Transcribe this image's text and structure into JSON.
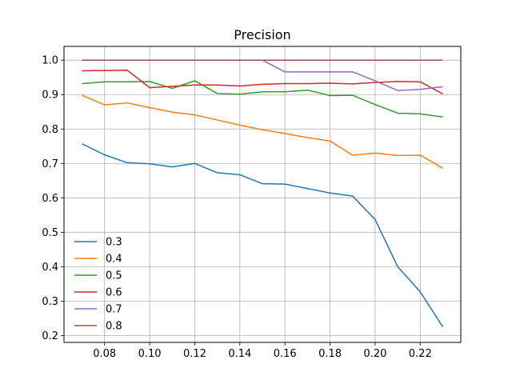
{
  "chart_data": {
    "type": "line",
    "title": "Precision",
    "xlabel": "",
    "ylabel": "",
    "xlim": [
      0.062,
      0.238
    ],
    "ylim": [
      0.18,
      1.04
    ],
    "xticks": [
      "0.08",
      "0.10",
      "0.12",
      "0.14",
      "0.16",
      "0.18",
      "0.20",
      "0.22"
    ],
    "yticks": [
      "0.2",
      "0.3",
      "0.4",
      "0.5",
      "0.6",
      "0.7",
      "0.8",
      "0.9",
      "1.0"
    ],
    "grid": true,
    "legend_position": "lower-left",
    "x": [
      0.07,
      0.08,
      0.09,
      0.1,
      0.11,
      0.12,
      0.13,
      0.14,
      0.15,
      0.16,
      0.17,
      0.18,
      0.19,
      0.2,
      0.21,
      0.22,
      0.23
    ],
    "series": [
      {
        "name": "0.3",
        "color": "#1f77b4",
        "values": [
          0.757,
          0.725,
          0.702,
          0.699,
          0.69,
          0.7,
          0.673,
          0.667,
          0.641,
          0.64,
          0.627,
          0.614,
          0.605,
          0.537,
          0.4,
          0.327,
          0.225
        ]
      },
      {
        "name": "0.4",
        "color": "#ff7f0e",
        "values": [
          0.898,
          0.87,
          0.876,
          0.862,
          0.849,
          0.841,
          0.826,
          0.811,
          0.798,
          0.787,
          0.775,
          0.765,
          0.724,
          0.73,
          0.723,
          0.724,
          0.686
        ]
      },
      {
        "name": "0.5",
        "color": "#2ca02c",
        "values": [
          0.932,
          0.937,
          0.937,
          0.938,
          0.918,
          0.94,
          0.903,
          0.901,
          0.908,
          0.908,
          0.913,
          0.897,
          0.898,
          0.871,
          0.846,
          0.844,
          0.835
        ]
      },
      {
        "name": "0.6",
        "color": "#d62728",
        "values": [
          0.969,
          0.97,
          0.971,
          0.92,
          0.924,
          0.928,
          0.928,
          0.925,
          0.93,
          0.932,
          0.932,
          0.933,
          0.931,
          0.935,
          0.938,
          0.937,
          0.902
        ]
      },
      {
        "name": "0.7",
        "color": "#9467bd",
        "values": [
          1.0,
          1.0,
          1.0,
          1.0,
          1.0,
          1.0,
          1.0,
          1.0,
          1.0,
          0.966,
          0.966,
          0.966,
          0.966,
          0.94,
          0.912,
          0.915,
          0.923
        ]
      },
      {
        "name": "0.8",
        "color": "#8c564b",
        "values": [
          1.0,
          1.0,
          1.0,
          1.0,
          1.0,
          1.0,
          1.0,
          1.0,
          1.0,
          1.0,
          1.0,
          1.0,
          1.0,
          1.0,
          1.0,
          1.0,
          1.0
        ]
      }
    ]
  }
}
